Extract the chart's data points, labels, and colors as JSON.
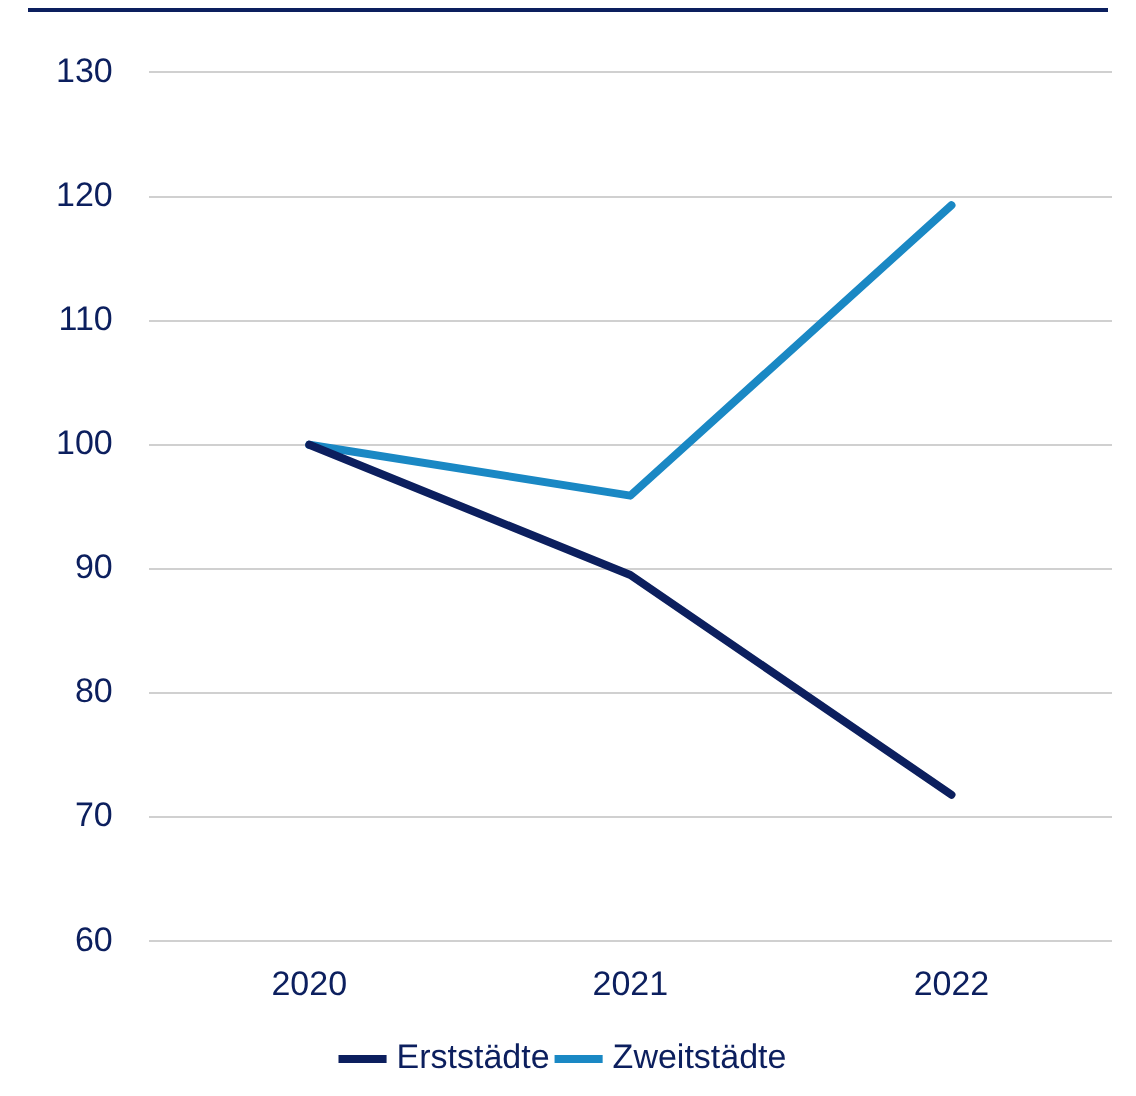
{
  "chart_data": {
    "type": "line",
    "categories": [
      "2020",
      "2021",
      "2022"
    ],
    "series": [
      {
        "name": "Erststädte",
        "color": "#0c1f5e",
        "values": [
          100,
          89.5,
          71.8
        ]
      },
      {
        "name": "Zweitstädte",
        "color": "#1a88c4",
        "values": [
          100,
          95.9,
          119.3
        ]
      }
    ],
    "ylim": [
      60,
      130
    ],
    "yticks": [
      60,
      70,
      80,
      90,
      100,
      110,
      120,
      130
    ],
    "grid": "y",
    "legend": "bottom",
    "marker": "none",
    "line_style": "solid"
  }
}
